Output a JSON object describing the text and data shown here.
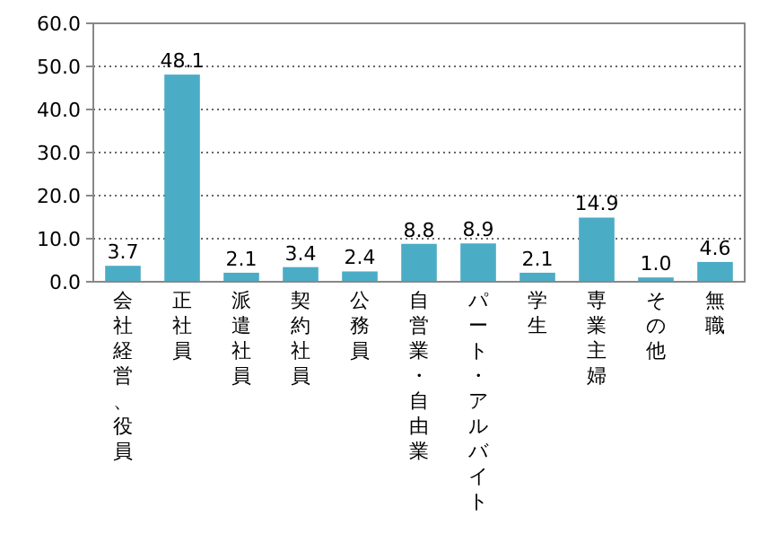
{
  "chart_data": {
    "type": "bar",
    "color": "#4bacc6",
    "grid": "y",
    "categories": [
      "会社経営、役員",
      "正社員",
      "派遣社員",
      "契約社員",
      "公務員",
      "自営業・自由業",
      "パート・アルバイト",
      "学生",
      "専業主婦",
      "その他",
      "無職"
    ],
    "values": [
      3.7,
      48.1,
      2.1,
      3.4,
      2.4,
      8.8,
      8.9,
      2.1,
      14.9,
      1.0,
      4.6
    ],
    "value_labels": [
      "3.7",
      "48.1",
      "2.1",
      "3.4",
      "2.4",
      "8.8",
      "8.9",
      "2.1",
      "14.9",
      "1.0",
      "4.6"
    ],
    "ylim": [
      0,
      60
    ],
    "yticks": [
      {
        "value": 0,
        "label": "0.0"
      },
      {
        "value": 10,
        "label": "10.0"
      },
      {
        "value": 20,
        "label": "20.0"
      },
      {
        "value": 30,
        "label": "30.0"
      },
      {
        "value": 40,
        "label": "40.0"
      },
      {
        "value": 50,
        "label": "50.0"
      },
      {
        "value": 60,
        "label": "60.0"
      }
    ]
  }
}
